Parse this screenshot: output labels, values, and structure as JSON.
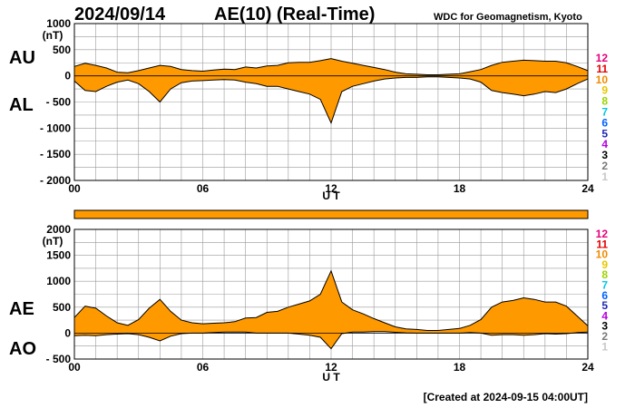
{
  "header": {
    "date": "2024/09/14",
    "title": "AE(10) (Real-Time)",
    "source": "WDC for Geomagnetism, Kyoto"
  },
  "footer": {
    "created": "[Created at 2024-09-15 04:00UT]"
  },
  "legend": {
    "items": [
      {
        "label": "12",
        "color": "#e6007e"
      },
      {
        "label": "11",
        "color": "#e60000"
      },
      {
        "label": "10",
        "color": "#f08c00"
      },
      {
        "label": "9",
        "color": "#e6c800"
      },
      {
        "label": "8",
        "color": "#9bd400"
      },
      {
        "label": "7",
        "color": "#00c8e6"
      },
      {
        "label": "6",
        "color": "#0064ff"
      },
      {
        "label": "5",
        "color": "#1e28b4"
      },
      {
        "label": "4",
        "color": "#b400dc"
      },
      {
        "label": "3",
        "color": "#000000"
      },
      {
        "label": "2",
        "color": "#7a7a7a"
      },
      {
        "label": "1",
        "color": "#c8c8c8"
      }
    ]
  },
  "colors": {
    "fill": "#ff9900",
    "line": "#000000",
    "grid": "#999999"
  },
  "chart_data": [
    {
      "type": "area",
      "name": "AU/AL",
      "units_label": "(nT)",
      "xlabel": "U T",
      "upper_label": "AU",
      "lower_label": "AL",
      "xlim": [
        0,
        24
      ],
      "ylim": [
        -2000,
        1000
      ],
      "yticks": [
        1000,
        500,
        0,
        -500,
        -1000,
        -1500,
        -2000
      ],
      "ytick_labels": [
        "1000",
        "500",
        "0",
        "- 500",
        "- 1000",
        "- 1500",
        "- 2000"
      ],
      "xticks": [
        0,
        6,
        12,
        18,
        24
      ],
      "xtick_labels": [
        "00",
        "06",
        "12",
        "18",
        "24"
      ],
      "series": [
        {
          "name": "AU",
          "x": [
            0,
            0.5,
            1,
            1.5,
            2,
            2.5,
            3,
            3.5,
            4,
            4.5,
            5,
            5.5,
            6,
            6.5,
            7,
            7.5,
            8,
            8.5,
            9,
            9.5,
            10,
            10.5,
            11,
            11.5,
            12,
            12.5,
            13,
            13.5,
            14,
            14.5,
            15,
            15.5,
            16,
            16.5,
            17,
            17.5,
            18,
            18.5,
            19,
            19.5,
            20,
            20.5,
            21,
            21.5,
            22,
            22.5,
            23,
            23.5,
            24
          ],
          "values": [
            180,
            240,
            200,
            150,
            70,
            60,
            100,
            150,
            200,
            180,
            120,
            100,
            90,
            110,
            130,
            120,
            170,
            150,
            190,
            200,
            250,
            260,
            260,
            290,
            330,
            280,
            240,
            200,
            160,
            120,
            70,
            40,
            30,
            20,
            20,
            30,
            40,
            80,
            120,
            200,
            260,
            280,
            300,
            290,
            280,
            280,
            250,
            180,
            100
          ]
        },
        {
          "name": "AL",
          "x": [
            0,
            0.5,
            1,
            1.5,
            2,
            2.5,
            3,
            3.5,
            4,
            4.5,
            5,
            5.5,
            6,
            6.5,
            7,
            7.5,
            8,
            8.5,
            9,
            9.5,
            10,
            10.5,
            11,
            11.5,
            12,
            12.5,
            13,
            13.5,
            14,
            14.5,
            15,
            15.5,
            16,
            16.5,
            17,
            17.5,
            18,
            18.5,
            19,
            19.5,
            20,
            20.5,
            21,
            21.5,
            22,
            22.5,
            23,
            23.5,
            24
          ],
          "values": [
            -100,
            -280,
            -300,
            -200,
            -120,
            -80,
            -150,
            -300,
            -500,
            -250,
            -130,
            -100,
            -90,
            -80,
            -70,
            -80,
            -120,
            -150,
            -200,
            -200,
            -250,
            -300,
            -350,
            -450,
            -900,
            -300,
            -200,
            -150,
            -100,
            -60,
            -40,
            -30,
            -30,
            -20,
            -20,
            -30,
            -40,
            -60,
            -120,
            -280,
            -320,
            -350,
            -380,
            -350,
            -300,
            -320,
            -250,
            -150,
            -60
          ]
        }
      ]
    },
    {
      "type": "area",
      "name": "AE/AO",
      "units_label": "(nT)",
      "xlabel": "U T",
      "upper_label": "AE",
      "lower_label": "AO",
      "xlim": [
        0,
        24
      ],
      "ylim": [
        -500,
        2000
      ],
      "yticks": [
        2000,
        1500,
        1000,
        500,
        0,
        -500
      ],
      "ytick_labels": [
        "2000",
        "1500",
        "1000",
        "500",
        "0",
        "- 500"
      ],
      "xticks": [
        0,
        6,
        12,
        18,
        24
      ],
      "xtick_labels": [
        "00",
        "06",
        "12",
        "18",
        "24"
      ],
      "series": [
        {
          "name": "AE",
          "x": [
            0,
            0.5,
            1,
            1.5,
            2,
            2.5,
            3,
            3.5,
            4,
            4.5,
            5,
            5.5,
            6,
            6.5,
            7,
            7.5,
            8,
            8.5,
            9,
            9.5,
            10,
            10.5,
            11,
            11.5,
            12,
            12.5,
            13,
            13.5,
            14,
            14.5,
            15,
            15.5,
            16,
            16.5,
            17,
            17.5,
            18,
            18.5,
            19,
            19.5,
            20,
            20.5,
            21,
            21.5,
            22,
            22.5,
            23,
            23.5,
            24
          ],
          "values": [
            300,
            520,
            480,
            330,
            200,
            150,
            260,
            480,
            650,
            420,
            250,
            200,
            180,
            190,
            200,
            220,
            290,
            300,
            400,
            420,
            500,
            560,
            620,
            750,
            1200,
            600,
            450,
            370,
            280,
            200,
            120,
            80,
            70,
            50,
            50,
            70,
            90,
            150,
            260,
            500,
            600,
            630,
            680,
            650,
            600,
            600,
            520,
            330,
            140
          ]
        },
        {
          "name": "AO",
          "x": [
            0,
            0.5,
            1,
            1.5,
            2,
            2.5,
            3,
            3.5,
            4,
            4.5,
            5,
            5.5,
            6,
            6.5,
            7,
            7.5,
            8,
            8.5,
            9,
            9.5,
            10,
            10.5,
            11,
            11.5,
            12,
            12.5,
            13,
            13.5,
            14,
            14.5,
            15,
            15.5,
            16,
            16.5,
            17,
            17.5,
            18,
            18.5,
            19,
            19.5,
            20,
            20.5,
            21,
            21.5,
            22,
            22.5,
            23,
            23.5,
            24
          ],
          "values": [
            -50,
            -40,
            -50,
            -30,
            -20,
            -10,
            -30,
            -80,
            -150,
            -60,
            -10,
            0,
            0,
            10,
            20,
            20,
            20,
            0,
            0,
            0,
            0,
            -20,
            -40,
            -80,
            -300,
            -10,
            20,
            20,
            30,
            30,
            15,
            5,
            0,
            0,
            0,
            0,
            0,
            10,
            0,
            -40,
            -30,
            -30,
            -40,
            -30,
            -10,
            -20,
            -10,
            10,
            20
          ]
        }
      ]
    }
  ]
}
